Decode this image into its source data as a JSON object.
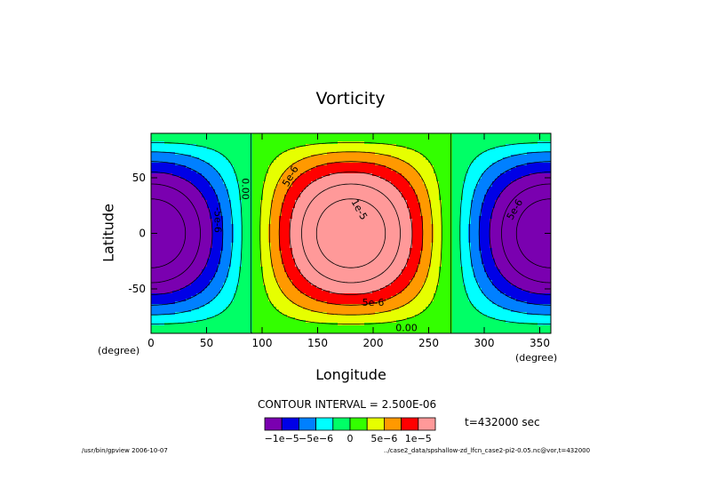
{
  "chart_data": {
    "type": "heatmap",
    "title": "Vorticity",
    "xlabel": "Longitude",
    "ylabel": "Latitude",
    "xunit": "(degree)",
    "yunit": "(degree)",
    "xlim": [
      0,
      360
    ],
    "ylim": [
      -90,
      90
    ],
    "x_ticks": [
      0,
      50,
      100,
      150,
      200,
      250,
      300,
      350
    ],
    "y_ticks": [
      50,
      0,
      -50
    ],
    "field": "zeta = -1.75e-5 * cos(longitude) * cos(latitude)",
    "contour_interval": "CONTOUR INTERVAL = 2.500E-06",
    "contour_labels": [
      "5e-6",
      "-5e-6",
      "0.00",
      "1e-5",
      "5e-6",
      "5e-6",
      "0.00"
    ],
    "time_label": "t=432000 sec",
    "colorbar": {
      "colors": [
        "#7a00b0",
        "#0000e6",
        "#0080ff",
        "#00ffff",
        "#00ff66",
        "#33ff00",
        "#e6ff00",
        "#ff9900",
        "#ff0000",
        "#ff9999"
      ],
      "tick_labels": [
        "−1e−5",
        "−5e−6",
        "0",
        "5e−6",
        "1e−5"
      ]
    },
    "grid": false
  },
  "footer": {
    "left": "/usr/bin/gpview   2006-10-07",
    "right": "../case2_data/spshallow-zd_lfcn_case2-pi2-0.05.nc@vor,t=432000"
  }
}
